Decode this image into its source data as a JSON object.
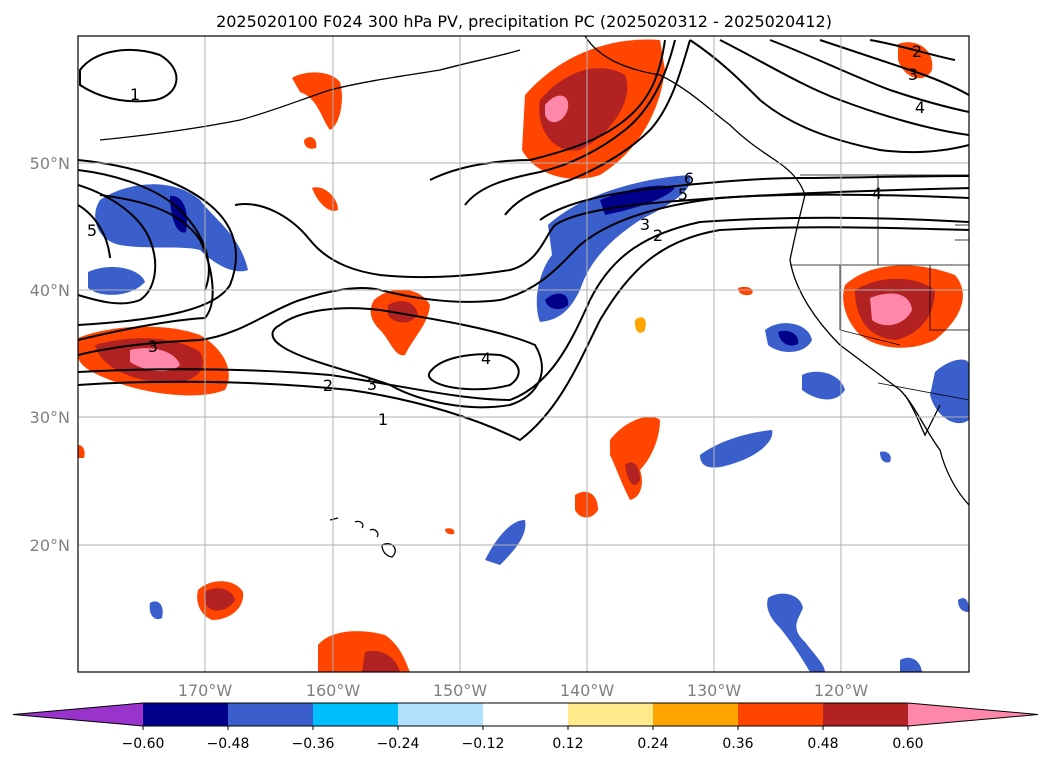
{
  "title": "2025020100 F024 300 hPa PV, precipitation PC (2025020312 - 2025020412)",
  "map": {
    "lat_labels": [
      "50°N",
      "40°N",
      "30°N",
      "20°N"
    ],
    "lon_labels": [
      "170°W",
      "160°W",
      "150°W",
      "140°W",
      "130°W",
      "120°W"
    ],
    "gridlines": true,
    "pv_contour_labels": [
      "1",
      "2",
      "3",
      "4",
      "5",
      "6",
      "1",
      "2",
      "3",
      "4",
      "3",
      "4",
      "3",
      "2",
      "5"
    ]
  },
  "colorbar": {
    "orientation": "horizontal",
    "extend": "both",
    "tick_labels": [
      "−0.60",
      "−0.48",
      "−0.36",
      "−0.24",
      "−0.12",
      "0.12",
      "0.24",
      "0.36",
      "0.48",
      "0.60"
    ],
    "colors": [
      "#9933cc",
      "#00008b",
      "#3a5fcd",
      "#00bfff",
      "#afe1fa",
      "#ffffff",
      "#ffe98a",
      "#ffa500",
      "#ff4500",
      "#b22222",
      "#ff88aa"
    ]
  }
}
